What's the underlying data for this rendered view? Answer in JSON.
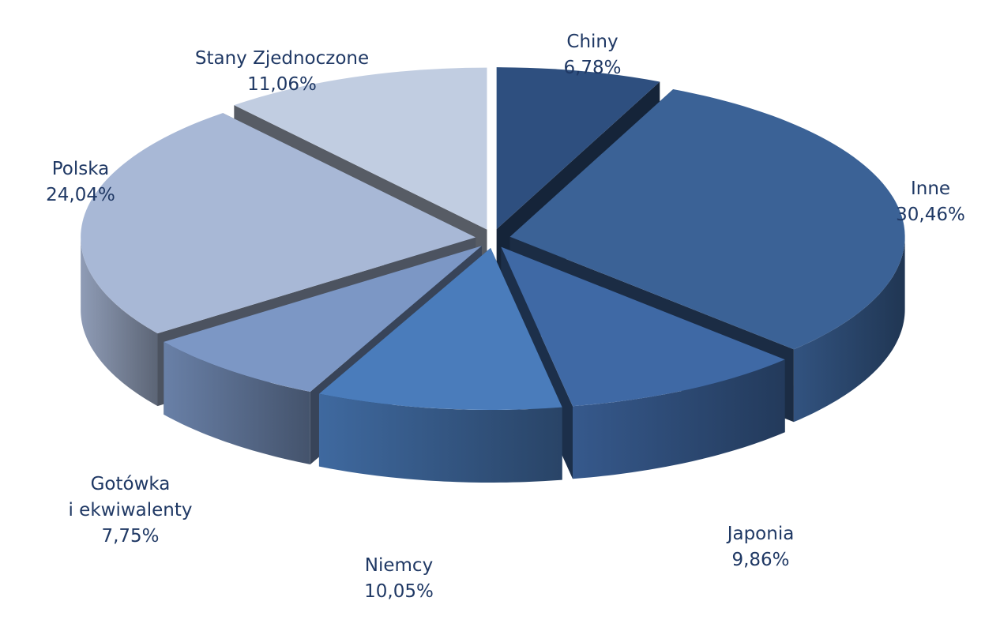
{
  "chart_data": {
    "type": "pie",
    "style": "3d-exploded",
    "decimal_separator": "comma",
    "slices": [
      {
        "name": "Chiny",
        "value": 6.78,
        "value_label": "6,78%",
        "color": "#2e4f7f"
      },
      {
        "name": "Inne",
        "value": 30.46,
        "value_label": "30,46%",
        "color": "#3b6296"
      },
      {
        "name": "Japonia",
        "value": 9.86,
        "value_label": "9,86%",
        "color": "#3f69a5"
      },
      {
        "name": "Niemcy",
        "value": 10.05,
        "value_label": "10,05%",
        "color": "#4a7cbb"
      },
      {
        "name": "Gotówka i ekwiwalenty",
        "label_lines": [
          "Gotówka",
          "i ekwiwalenty"
        ],
        "value": 7.75,
        "value_label": "7,75%",
        "color": "#7c97c5"
      },
      {
        "name": "Polska",
        "value": 24.04,
        "value_label": "24,04%",
        "color": "#a8b8d6"
      },
      {
        "name": "Stany Zjednoczone",
        "value": 11.06,
        "value_label": "11,06%",
        "color": "#c1cde1"
      }
    ],
    "legend": "none",
    "label_color": "#1f3864"
  }
}
